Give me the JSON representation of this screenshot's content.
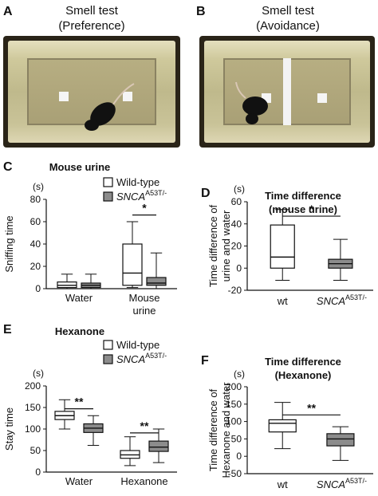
{
  "panel_a": {
    "letter": "A",
    "title_line1": "Smell test",
    "title_line2": "(Preference)"
  },
  "panel_b": {
    "letter": "B",
    "title_line1": "Smell test",
    "title_line2": "(Avoidance)"
  },
  "chart_data": [
    {
      "letter": "C",
      "type": "box",
      "title": "Mouse urine",
      "unit": "(s)",
      "ylabel": "Sniffing time",
      "ylim": [
        0,
        80
      ],
      "yticks": [
        0,
        20,
        40,
        60,
        80
      ],
      "categories": [
        "Water",
        "Mouse urine"
      ],
      "category_lines": [
        [
          "Water"
        ],
        [
          "Mouse",
          "urine"
        ]
      ],
      "legend": [
        "Wild-type",
        "SNCA",
        "A53T/-"
      ],
      "series": [
        {
          "name": "Wild-type",
          "color": "#ffffff",
          "boxes": [
            {
              "min": 0,
              "q1": 1,
              "median": 3,
              "q3": 6,
              "max": 13
            },
            {
              "min": 1,
              "q1": 3,
              "median": 14,
              "q3": 40,
              "max": 60
            }
          ]
        },
        {
          "name": "SNCA A53T/-",
          "color": "#8c8c8c",
          "boxes": [
            {
              "min": 0,
              "q1": 1,
              "median": 3,
              "q3": 5,
              "max": 13
            },
            {
              "min": 0,
              "q1": 3,
              "median": 5,
              "q3": 10,
              "max": 32
            }
          ]
        }
      ],
      "significance": [
        {
          "label": "*",
          "category": 1,
          "y": 66
        }
      ]
    },
    {
      "letter": "D",
      "type": "box",
      "title": "Time difference",
      "subtitle": "(mouse urine)",
      "unit": "(s)",
      "ylabel_line1": "Time difference of",
      "ylabel_line2": "urine and water",
      "ylim": [
        -20,
        60
      ],
      "yticks": [
        -20,
        0,
        20,
        40,
        60
      ],
      "categories": [
        "wt",
        "SNCA",
        "A53T/-"
      ],
      "boxes": [
        {
          "label": "wt",
          "color": "#ffffff",
          "min": -11,
          "q1": 0,
          "median": 10,
          "q3": 39,
          "max": 53
        },
        {
          "label": "SNCA A53T/-",
          "color": "#8c8c8c",
          "min": -11,
          "q1": 0,
          "median": 4,
          "q3": 8,
          "max": 26
        }
      ],
      "significance": [
        {
          "label": "*",
          "y": 47
        }
      ]
    },
    {
      "letter": "E",
      "type": "box",
      "title": "Hexanone",
      "unit": "(s)",
      "ylabel": "Stay time",
      "ylim": [
        0,
        200
      ],
      "yticks": [
        0,
        50,
        100,
        150,
        200
      ],
      "categories": [
        "Water",
        "Hexanone"
      ],
      "legend": [
        "Wild-type",
        "SNCA",
        "A53T/-"
      ],
      "series": [
        {
          "name": "Wild-type",
          "color": "#ffffff",
          "boxes": [
            {
              "min": 100,
              "q1": 122,
              "median": 131,
              "q3": 141,
              "max": 168
            },
            {
              "min": 15,
              "q1": 32,
              "median": 40,
              "q3": 50,
              "max": 82
            }
          ]
        },
        {
          "name": "SNCA A53T/-",
          "color": "#8c8c8c",
          "boxes": [
            {
              "min": 62,
              "q1": 92,
              "median": 102,
              "q3": 112,
              "max": 131
            },
            {
              "min": 22,
              "q1": 48,
              "median": 58,
              "q3": 72,
              "max": 100
            }
          ]
        }
      ],
      "significance": [
        {
          "label": "**",
          "category": 0,
          "y": 147
        },
        {
          "label": "**",
          "category": 1,
          "y": 91
        }
      ]
    },
    {
      "letter": "F",
      "type": "box",
      "title": "Time difference",
      "subtitle": "(Hexanone)",
      "unit": "(s)",
      "ylabel_line1": "Time difference of",
      "ylabel_line2": "Hexanone and water",
      "ylim": [
        -50,
        200
      ],
      "yticks": [
        -50,
        0,
        50,
        100,
        150,
        200
      ],
      "categories": [
        "wt",
        "SNCA",
        "A53T/-"
      ],
      "boxes": [
        {
          "label": "wt",
          "color": "#ffffff",
          "min": 22,
          "q1": 70,
          "median": 95,
          "q3": 105,
          "max": 155
        },
        {
          "label": "SNCA A53T/-",
          "color": "#8c8c8c",
          "min": -12,
          "q1": 30,
          "median": 50,
          "q3": 65,
          "max": 85
        }
      ],
      "significance": [
        {
          "label": "**",
          "y": 119
        }
      ]
    }
  ]
}
